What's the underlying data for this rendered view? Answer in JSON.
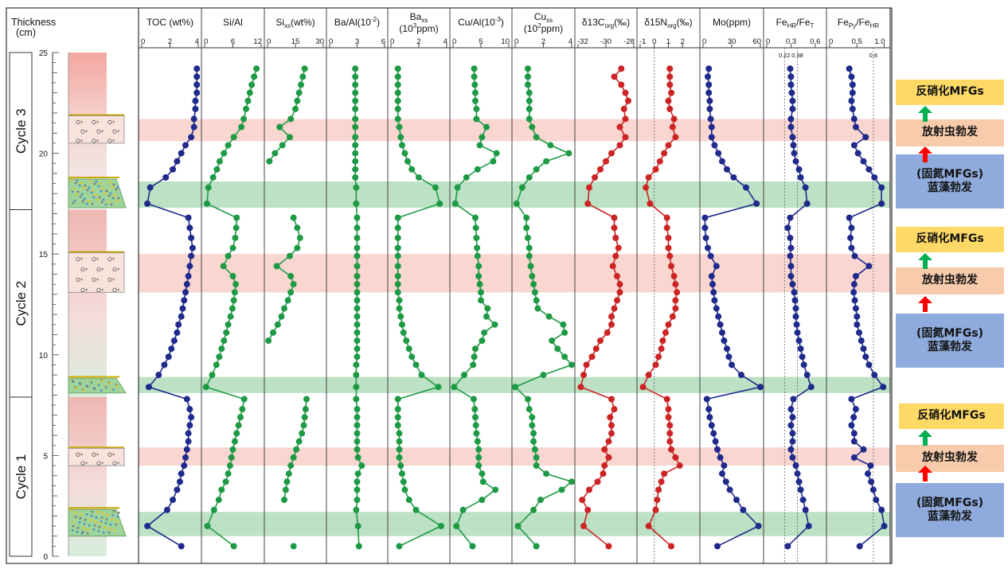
{
  "chart_data": {
    "type": "line",
    "y_axis": {
      "title_line1": "Thickness",
      "title_line2": "(cm)",
      "range": [
        0,
        25
      ],
      "ticks": [
        0,
        5,
        10,
        15,
        20,
        25
      ]
    },
    "cycles": [
      {
        "label": "Cycle 1",
        "range": [
          0,
          7.9
        ]
      },
      {
        "label": "Cycle 2",
        "range": [
          7.9,
          17.2
        ]
      },
      {
        "label": "Cycle 3",
        "range": [
          17.2,
          25
        ]
      }
    ],
    "bands": [
      {
        "type": "green",
        "range": [
          1.0,
          2.2
        ]
      },
      {
        "type": "pink",
        "range": [
          4.5,
          5.4
        ]
      },
      {
        "type": "green",
        "range": [
          8.1,
          8.9
        ]
      },
      {
        "type": "pink",
        "range": [
          13.1,
          15.0
        ]
      },
      {
        "type": "green",
        "range": [
          17.3,
          18.6
        ]
      },
      {
        "type": "pink",
        "range": [
          20.6,
          21.7
        ]
      }
    ],
    "depths": [
      0.5,
      1.5,
      2.3,
      2.8,
      3.3,
      3.7,
      4.1,
      4.5,
      4.9,
      5.3,
      5.7,
      6.1,
      6.5,
      6.9,
      7.3,
      7.8,
      8.4,
      9.0,
      9.5,
      9.9,
      10.3,
      10.7,
      11.1,
      11.5,
      11.9,
      12.3,
      12.7,
      13.1,
      13.5,
      13.9,
      14.4,
      14.9,
      15.3,
      15.8,
      16.3,
      16.8,
      17.5,
      18.3,
      18.8,
      19.2,
      19.6,
      20.0,
      20.4,
      20.8,
      21.3,
      21.7,
      22.2,
      22.6,
      23.0,
      23.4,
      23.8,
      24.2
    ],
    "profiles": [
      {
        "label": "TOC (wt%)",
        "range": [
          0,
          4
        ],
        "ticks": [
          {
            "v": 0,
            "t": "0"
          },
          {
            "v": 2,
            "t": "2"
          },
          {
            "v": 4,
            "t": "4"
          }
        ],
        "color": "#1f2a8c",
        "values": [
          2.8,
          0.4,
          1.8,
          2.2,
          2.5,
          2.7,
          2.8,
          3.0,
          3.1,
          3.2,
          3.3,
          3.3,
          3.4,
          3.5,
          3.4,
          3.2,
          0.5,
          1.2,
          1.6,
          1.9,
          2.1,
          2.3,
          2.5,
          2.6,
          2.8,
          2.9,
          3.0,
          3.1,
          3.2,
          3.3,
          3.4,
          3.5,
          3.6,
          3.5,
          3.4,
          3.3,
          0.4,
          0.6,
          1.7,
          2.2,
          2.5,
          2.8,
          3.1,
          3.5,
          3.7,
          3.7,
          3.8,
          3.8,
          3.9,
          3.9,
          3.9,
          3.9
        ]
      },
      {
        "label": "Si/Al",
        "range": [
          0,
          12
        ],
        "ticks": [
          {
            "v": 0,
            "t": "0"
          },
          {
            "v": 6,
            "t": "6"
          },
          {
            "v": 12,
            "t": "12"
          }
        ],
        "color": "#1e9a45",
        "values": [
          6.2,
          0.6,
          2.0,
          3.0,
          3.6,
          4.5,
          5.0,
          5.4,
          5.7,
          6.0,
          6.4,
          6.8,
          7.2,
          7.6,
          8.0,
          8.4,
          0.3,
          1.6,
          2.5,
          3.1,
          3.6,
          4.1,
          4.6,
          5.0,
          5.5,
          5.9,
          6.2,
          6.4,
          6.6,
          6.0,
          4.0,
          5.0,
          6.0,
          6.5,
          6.7,
          6.8,
          0.5,
          0.8,
          1.8,
          2.6,
          3.2,
          4.1,
          5.0,
          6.2,
          7.8,
          8.3,
          8.8,
          9.2,
          9.6,
          10.0,
          10.5,
          11.0
        ]
      },
      {
        "label": "Si_xs(wt%)",
        "range": [
          0,
          30
        ],
        "ticks": [
          {
            "v": 0,
            "t": "0"
          },
          {
            "v": 15,
            "t": "15"
          },
          {
            "v": 30,
            "t": "30"
          }
        ],
        "color": "#1e9a45",
        "values": [
          14.0,
          null,
          null,
          9.0,
          9.8,
          10.5,
          11.5,
          12.5,
          14.0,
          15.5,
          17.0,
          18.5,
          19.5,
          20.0,
          20.5,
          21.0,
          null,
          null,
          null,
          null,
          null,
          0.5,
          3.0,
          5.5,
          7.5,
          9.0,
          11.0,
          12.5,
          14.0,
          12.5,
          5.0,
          12.0,
          16.0,
          17.5,
          16.0,
          14.0,
          null,
          null,
          null,
          null,
          1.0,
          4.0,
          8.0,
          12.0,
          6.5,
          12.5,
          15.0,
          16.0,
          17.0,
          18.0,
          19.0,
          20.0
        ]
      },
      {
        "label": "Ba/Al(10^-2)",
        "range": [
          0,
          6
        ],
        "ticks": [
          {
            "v": 0,
            "t": "0"
          },
          {
            "v": 3,
            "t": "3"
          },
          {
            "v": 6,
            "t": "6"
          }
        ],
        "color": "#1e9a45",
        "values": [
          3.2,
          3.1,
          2.9,
          3.0,
          3.0,
          3.0,
          3.1,
          3.5,
          3.1,
          3.0,
          3.0,
          3.0,
          3.0,
          3.0,
          3.0,
          2.9,
          2.9,
          2.9,
          2.9,
          3.0,
          3.0,
          3.0,
          3.0,
          3.0,
          3.0,
          3.0,
          3.0,
          3.0,
          3.0,
          3.0,
          3.0,
          3.0,
          3.0,
          3.0,
          3.0,
          3.0,
          2.9,
          2.9,
          2.8,
          2.8,
          2.8,
          2.8,
          2.8,
          2.8,
          2.8,
          2.8,
          2.8,
          2.8,
          2.8,
          2.8,
          2.8,
          2.8
        ]
      },
      {
        "label": "Ba_xs",
        "sublabel": "(10^3ppm)",
        "range": [
          0,
          4
        ],
        "ticks": [
          {
            "v": 0,
            "t": "0"
          },
          {
            "v": 2,
            "t": "2"
          },
          {
            "v": 4,
            "t": "4"
          }
        ],
        "color": "#1e9a45",
        "values": [
          0.6,
          3.6,
          1.8,
          1.3,
          1.0,
          0.9,
          0.8,
          0.7,
          0.6,
          0.6,
          0.6,
          0.6,
          0.5,
          0.5,
          0.5,
          0.5,
          3.4,
          2.2,
          1.8,
          1.5,
          1.3,
          1.1,
          0.9,
          0.8,
          0.7,
          0.6,
          0.6,
          0.5,
          0.5,
          0.5,
          0.5,
          0.5,
          0.5,
          0.5,
          0.5,
          0.5,
          3.5,
          3.2,
          2.0,
          1.5,
          1.2,
          1.0,
          0.8,
          0.7,
          0.6,
          0.5,
          0.5,
          0.5,
          0.5,
          0.5,
          0.5,
          0.5
        ]
      },
      {
        "label": "Cu/Al(10^-3)",
        "range": [
          0,
          10
        ],
        "ticks": [
          {
            "v": 0,
            "t": "0"
          },
          {
            "v": 5,
            "t": "5"
          },
          {
            "v": 10,
            "t": "10"
          }
        ],
        "color": "#1e9a45",
        "values": [
          3.5,
          0.6,
          1.8,
          5.2,
          7.6,
          5.4,
          5.2,
          4.6,
          4.6,
          4.6,
          4.4,
          4.2,
          4.1,
          4.0,
          3.9,
          3.7,
          0.2,
          2.0,
          3.6,
          3.8,
          4.0,
          5.2,
          5.6,
          7.5,
          6.0,
          6.2,
          5.0,
          5.0,
          4.8,
          4.6,
          4.6,
          4.4,
          4.3,
          4.2,
          4.1,
          4.0,
          0.4,
          0.8,
          2.4,
          4.4,
          7.2,
          7.8,
          4.8,
          5.2,
          6.0,
          4.2,
          4.2,
          4.0,
          4.0,
          3.9,
          3.8,
          3.8
        ]
      },
      {
        "label": "Cu_xs",
        "sublabel": "(10^2ppm)",
        "range": [
          0,
          4
        ],
        "ticks": [
          {
            "v": 0,
            "t": "0"
          },
          {
            "v": 2,
            "t": "2"
          },
          {
            "v": 4,
            "t": "4"
          }
        ],
        "color": "#1e9a45",
        "values": [
          1.5,
          0.2,
          1.3,
          1.8,
          3.3,
          4.0,
          2.2,
          1.5,
          1.5,
          1.4,
          1.3,
          1.3,
          1.2,
          1.2,
          1.0,
          0.9,
          0.0,
          2.0,
          4.0,
          3.5,
          3.0,
          2.6,
          3.5,
          3.4,
          2.4,
          1.6,
          1.5,
          1.4,
          1.3,
          1.2,
          1.1,
          1.0,
          1.0,
          0.9,
          0.8,
          0.8,
          0.1,
          0.5,
          1.0,
          1.5,
          2.2,
          3.8,
          2.5,
          1.5,
          1.2,
          1.0,
          1.0,
          1.0,
          1.0,
          0.9,
          0.9,
          0.9
        ]
      },
      {
        "label": "δ13C_org(‰)",
        "range": [
          -32,
          -28
        ],
        "ticks": [
          {
            "v": -32,
            "t": "-32"
          },
          {
            "v": -30,
            "t": "-30"
          },
          {
            "v": -28,
            "t": "-28"
          }
        ],
        "color": "#cc2424",
        "values": [
          -29.8,
          -31.6,
          -31.3,
          -31.7,
          -31.2,
          -30.6,
          -30.2,
          -30.1,
          -29.8,
          -30.1,
          -29.8,
          -29.6,
          -29.6,
          -29.7,
          -29.4,
          -29.6,
          -31.8,
          -31.6,
          -31.4,
          -31.0,
          -30.7,
          -30.4,
          -29.9,
          -29.6,
          -29.6,
          -29.4,
          -29.2,
          -29.0,
          -29.0,
          -29.2,
          -29.5,
          -29.3,
          -29.1,
          -29.3,
          -29.4,
          -29.4,
          -31.3,
          -31.2,
          -30.8,
          -30.4,
          -30.0,
          -29.6,
          -29.0,
          -28.6,
          -29.0,
          -28.6,
          -28.7,
          -28.4,
          -28.6,
          -28.9,
          -29.4,
          -28.9
        ]
      },
      {
        "label": "δ15N_org(‰)",
        "range": [
          -1,
          3
        ],
        "ticks": [
          {
            "v": -1,
            "t": "-1"
          },
          {
            "v": 0,
            "t": "0"
          },
          {
            "v": 1,
            "t": "1"
          },
          {
            "v": 2,
            "t": "2"
          }
        ],
        "color": "#cc2424",
        "values": [
          1.2,
          -0.4,
          0.1,
          0.2,
          0.3,
          0.5,
          0.7,
          1.8,
          1.5,
          1.2,
          1.1,
          1.1,
          1.1,
          1.0,
          1.0,
          0.9,
          -0.8,
          -0.4,
          0.1,
          0.3,
          0.5,
          0.6,
          0.8,
          1.0,
          1.3,
          1.5,
          1.5,
          1.6,
          1.5,
          1.4,
          1.2,
          1.1,
          1.0,
          1.0,
          0.9,
          0.9,
          -0.3,
          -0.6,
          -0.4,
          0.1,
          0.4,
          0.7,
          1.0,
          1.5,
          1.3,
          1.4,
          1.1,
          1.0,
          1.2,
          1.1,
          1.1,
          1.1
        ]
      },
      {
        "label": "Mo(ppm)",
        "range": [
          0,
          60
        ],
        "ticks": [
          {
            "v": 0,
            "t": "0"
          },
          {
            "v": 30,
            "t": "30"
          },
          {
            "v": 60,
            "t": "60"
          }
        ],
        "color": "#1f2a8c",
        "values": [
          15,
          58,
          42,
          35,
          28,
          24,
          20,
          22,
          18,
          15,
          13,
          11,
          9,
          7,
          6,
          4,
          60,
          40,
          30,
          27,
          25,
          22,
          20,
          18,
          16,
          14,
          12,
          11,
          10,
          9,
          14,
          8,
          5,
          3,
          2,
          2,
          56,
          45,
          32,
          25,
          20,
          16,
          12,
          9,
          9,
          8,
          7,
          7,
          6,
          6,
          5,
          6
        ]
      },
      {
        "label": "Fe_HR/Fe_T",
        "range": [
          0,
          0.7
        ],
        "ticks": [
          {
            "v": 0,
            "t": "0"
          },
          {
            "v": 0.3,
            "t": "0.3"
          },
          {
            "v": 0.6,
            "t": "0.6"
          }
        ],
        "dashed": [
          {
            "v": 0.22,
            "t": "0.22"
          },
          {
            "v": 0.38,
            "t": "0.38"
          }
        ],
        "color": "#1f2a8c",
        "values": [
          0.26,
          0.52,
          0.48,
          0.45,
          0.42,
          0.4,
          0.38,
          0.36,
          0.32,
          0.3,
          0.32,
          0.32,
          0.3,
          0.32,
          0.3,
          0.33,
          0.55,
          0.5,
          0.46,
          0.44,
          0.42,
          0.4,
          0.38,
          0.37,
          0.36,
          0.36,
          0.35,
          0.34,
          0.32,
          0.3,
          0.3,
          0.29,
          0.3,
          0.29,
          0.26,
          0.29,
          0.5,
          0.48,
          0.42,
          0.4,
          0.36,
          0.34,
          0.33,
          0.32,
          0.3,
          0.3,
          0.32,
          0.32,
          0.31,
          0.3,
          0.3,
          0.29
        ]
      },
      {
        "label": "Fe_Py/Fe_HR",
        "range": [
          0,
          1.05
        ],
        "ticks": [
          {
            "v": 0,
            "t": "0"
          },
          {
            "v": 0.5,
            "t": "0.5"
          },
          {
            "v": 1.0,
            "t": "1.0"
          }
        ],
        "dashed": [
          {
            "v": 0.8,
            "t": "0.8"
          }
        ],
        "color": "#1f2a8c",
        "values": [
          0.55,
          1.0,
          0.95,
          0.85,
          0.8,
          0.76,
          0.7,
          0.75,
          0.45,
          0.62,
          0.45,
          0.45,
          0.4,
          0.44,
          0.48,
          0.4,
          0.98,
          0.82,
          0.72,
          0.66,
          0.62,
          0.58,
          0.54,
          0.5,
          0.5,
          0.48,
          0.46,
          0.44,
          0.45,
          0.48,
          0.72,
          0.46,
          0.4,
          0.38,
          0.4,
          0.36,
          0.95,
          0.95,
          0.82,
          0.72,
          0.62,
          0.52,
          0.45,
          0.66,
          0.48,
          0.45,
          0.42,
          0.4,
          0.42,
          0.42,
          0.4,
          0.36
        ]
      }
    ]
  },
  "right_panel": {
    "groups": [
      {
        "denitrification": "反硝化MFGs",
        "radiolarian": "放射虫勃发",
        "nitrogen_fixing": "(固氮MFGs)",
        "cyanobacteria": "蓝藻勃发"
      },
      {
        "denitrification": "反硝化MFGs",
        "radiolarian": "放射虫勃发",
        "nitrogen_fixing": "(固氮MFGs)",
        "cyanobacteria": "蓝藻勃发"
      },
      {
        "denitrification": "反硝化MFGs",
        "radiolarian": "放射虫勃发",
        "nitrogen_fixing": "(固氮MFGs)",
        "cyanobacteria": "蓝藻勃发"
      }
    ]
  },
  "colors": {
    "green_band": "#b8dfc1",
    "pink_band": "#f9d4cd",
    "navy": "#1f2a8c",
    "green": "#1e9a45",
    "red": "#cc2424",
    "yellow_box": "#ffd966",
    "peach_box": "#f8cbad",
    "blue_box": "#8faadc"
  }
}
